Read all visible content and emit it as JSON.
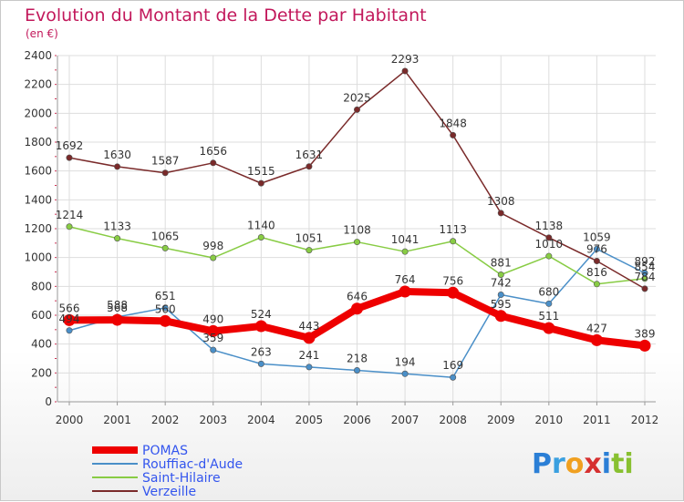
{
  "chart_data": {
    "type": "line",
    "title": "Evolution du Montant de la Dette par Habitant",
    "subtitle": "(en €)",
    "x": [
      "2000",
      "2001",
      "2002",
      "2003",
      "2004",
      "2005",
      "2006",
      "2007",
      "2008",
      "2009",
      "2010",
      "2011",
      "2012"
    ],
    "ylim": [
      0,
      2400
    ],
    "yticks": [
      "0",
      "200",
      "400",
      "600",
      "800",
      "1000",
      "1200",
      "1400",
      "1600",
      "1800",
      "2000",
      "2200",
      "2400"
    ],
    "grid": true,
    "legend_position": "bottom-left",
    "series": [
      {
        "name": "POMAS",
        "color": "#ee0000",
        "values": [
          566,
          568,
          560,
          490,
          524,
          443,
          646,
          764,
          756,
          595,
          511,
          427,
          389
        ],
        "labels": [
          "566",
          "568",
          "560",
          "490",
          "524",
          "443",
          "646",
          "764",
          "756",
          "595",
          "511",
          "427",
          "389"
        ]
      },
      {
        "name": "Rouffiac-d'Aude",
        "color": "#4a8fc8",
        "values": [
          494,
          588,
          651,
          359,
          263,
          241,
          218,
          194,
          169,
          742,
          680,
          1059,
          892
        ],
        "labels": [
          "494",
          "588",
          "651",
          "359",
          "263",
          "241",
          "218",
          "194",
          "169",
          "742",
          "680",
          "1059",
          "892"
        ]
      },
      {
        "name": "Saint-Hilaire",
        "color": "#88cc44",
        "values": [
          1214,
          1133,
          1065,
          998,
          1140,
          1051,
          1108,
          1041,
          1113,
          881,
          1010,
          816,
          854
        ],
        "labels": [
          "1214",
          "1133",
          "1065",
          "998",
          "1140",
          "1051",
          "1108",
          "1041",
          "1113",
          "881",
          "1010",
          "816",
          "854"
        ]
      },
      {
        "name": "Verzeille",
        "color": "#7a2a2a",
        "values": [
          1692,
          1630,
          1587,
          1656,
          1515,
          1631,
          2025,
          2293,
          1848,
          1308,
          1138,
          976,
          784
        ],
        "labels": [
          "1692",
          "1630",
          "1587",
          "1656",
          "1515",
          "1631",
          "2025",
          "2293",
          "1848",
          "1308",
          "1138",
          "976",
          "784"
        ]
      }
    ]
  },
  "logo": {
    "letters": [
      {
        "char": "P",
        "color": "#2b7fd6"
      },
      {
        "char": "r",
        "color": "#3aa0e0"
      },
      {
        "char": "o",
        "color": "#f0a020"
      },
      {
        "char": "x",
        "color": "#d63030"
      },
      {
        "char": "i",
        "color": "#2b7fd6"
      },
      {
        "char": "t",
        "color": "#88c030"
      },
      {
        "char": "i",
        "color": "#88c030"
      }
    ]
  }
}
